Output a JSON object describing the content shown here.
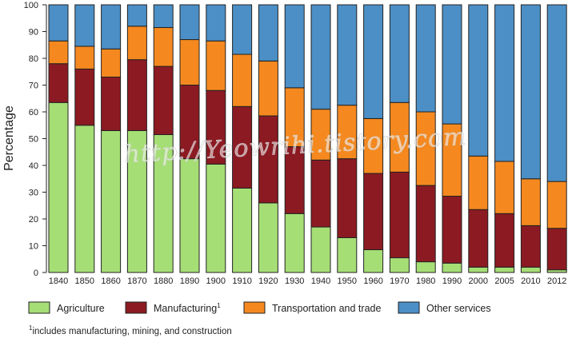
{
  "chart_data": {
    "type": "bar",
    "stacked": true,
    "title": "",
    "xlabel": "",
    "ylabel": "Percentage",
    "ylim": [
      0,
      100
    ],
    "yticks": [
      0,
      10,
      20,
      30,
      40,
      50,
      60,
      70,
      80,
      90,
      100
    ],
    "grid": false,
    "legend_position": "bottom",
    "categories": [
      "1840",
      "1850",
      "1860",
      "1870",
      "1880",
      "1890",
      "1900",
      "1910",
      "1920",
      "1930",
      "1940",
      "1950",
      "1960",
      "1970",
      "1980",
      "1990",
      "2000",
      "2005",
      "2010",
      "2012"
    ],
    "series": [
      {
        "name": "Agriculture",
        "color": "#a6de76",
        "values": [
          63.5,
          55,
          53,
          53,
          51.5,
          42.5,
          40.5,
          31.5,
          26,
          22,
          17,
          13,
          8.5,
          5.5,
          4,
          3.5,
          2,
          2,
          2,
          1
        ]
      },
      {
        "name": "Manufacturing",
        "name_superscript": "1",
        "color": "#8c1a22",
        "values": [
          14.5,
          21,
          20,
          26.5,
          25.5,
          27.5,
          27.5,
          30.5,
          32.5,
          25,
          25,
          29.5,
          28.5,
          32,
          28.5,
          25,
          21.5,
          20,
          15.5,
          15.5
        ]
      },
      {
        "name": "Transportation and trade",
        "color": "#f5891f",
        "values": [
          8.5,
          8.5,
          10.5,
          12.5,
          14.5,
          17,
          18.5,
          19.5,
          20.5,
          22,
          19,
          20,
          20.5,
          26,
          27.5,
          27,
          20,
          19.5,
          17.5,
          17.5
        ]
      },
      {
        "name": "Other services",
        "color": "#4b8fc6",
        "values": [
          13.5,
          15.5,
          16.5,
          8,
          8.5,
          13,
          13.5,
          18.5,
          21,
          31,
          39,
          37.5,
          42.5,
          36.5,
          40,
          44.5,
          56.5,
          58.5,
          65,
          66
        ]
      }
    ],
    "footnote_superscript": "1",
    "footnote": "includes manufacturing, mining, and construction"
  },
  "watermark": "http://Yeowrihi.tistory.com"
}
